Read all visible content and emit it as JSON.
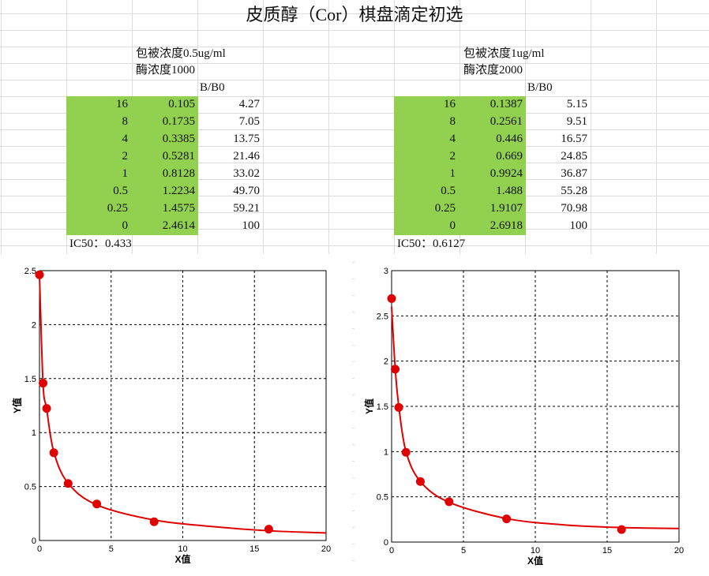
{
  "title": "皮质醇（Cor）棋盘滴定初选",
  "panels": [
    {
      "coating": "包被浓度0.5ug/ml",
      "enzyme": "酶浓度1000",
      "header": "B/B0",
      "rows": [
        [
          "16",
          "0.105",
          "4.27"
        ],
        [
          "8",
          "0.1735",
          "7.05"
        ],
        [
          "4",
          "0.3385",
          "13.75"
        ],
        [
          "2",
          "0.5281",
          "21.46"
        ],
        [
          "1",
          "0.8128",
          "33.02"
        ],
        [
          "0.5",
          "1.2234",
          "49.70"
        ],
        [
          "0.25",
          "1.4575",
          "59.21"
        ],
        [
          "0",
          "2.4614",
          "100"
        ]
      ],
      "ic50": "IC50：0.433"
    },
    {
      "coating": "包被浓度1ug/ml",
      "enzyme": "酶浓度2000",
      "header": "B/B0",
      "rows": [
        [
          "16",
          "0.1387",
          "5.15"
        ],
        [
          "8",
          "0.2561",
          "9.51"
        ],
        [
          "4",
          "0.446",
          "16.57"
        ],
        [
          "2",
          "0.669",
          "24.85"
        ],
        [
          "1",
          "0.9924",
          "36.87"
        ],
        [
          "0.5",
          "1.488",
          "55.28"
        ],
        [
          "0.25",
          "1.9107",
          "70.98"
        ],
        [
          "0",
          "2.6918",
          "100"
        ]
      ],
      "ic50": "IC50：0.6127"
    }
  ],
  "chart_data": [
    {
      "type": "scatter",
      "x_label": "X值",
      "y_label": "Y值",
      "color": "#e00000",
      "x": [
        16,
        8,
        4,
        2,
        1,
        0.5,
        0.25,
        0
      ],
      "y": [
        0.105,
        0.1735,
        0.3385,
        0.5281,
        0.8128,
        1.2234,
        1.4575,
        2.4614
      ],
      "curve": {
        "x": [
          0,
          0.25,
          0.5,
          1,
          2,
          4,
          8,
          12,
          16,
          20
        ],
        "y": [
          2.46,
          1.45,
          1.22,
          0.82,
          0.53,
          0.33,
          0.19,
          0.13,
          0.09,
          0.07
        ]
      },
      "xlim": [
        0,
        20
      ],
      "xticks": [
        0,
        5,
        10,
        15,
        20
      ],
      "ylim": [
        0,
        2.5
      ],
      "yticks": [
        0,
        0.5,
        1,
        1.5,
        2,
        2.5
      ],
      "grid": true
    },
    {
      "type": "scatter",
      "x_label": "X值",
      "y_label": "Y值",
      "color": "#e00000",
      "x": [
        16,
        8,
        4,
        2,
        1,
        0.5,
        0.25,
        0
      ],
      "y": [
        0.1387,
        0.2561,
        0.446,
        0.669,
        0.9924,
        1.488,
        1.9107,
        2.6918
      ],
      "curve": {
        "x": [
          0,
          0.25,
          0.5,
          1,
          2,
          4,
          8,
          12,
          16,
          20
        ],
        "y": [
          2.6,
          1.92,
          1.5,
          1.0,
          0.67,
          0.44,
          0.26,
          0.19,
          0.16,
          0.15
        ]
      },
      "xlim": [
        0,
        20
      ],
      "xticks": [
        0,
        5,
        10,
        15,
        20
      ],
      "ylim": [
        0,
        3
      ],
      "yticks": [
        0,
        0.5,
        1,
        1.5,
        2,
        2.5,
        3
      ],
      "grid": true
    }
  ]
}
